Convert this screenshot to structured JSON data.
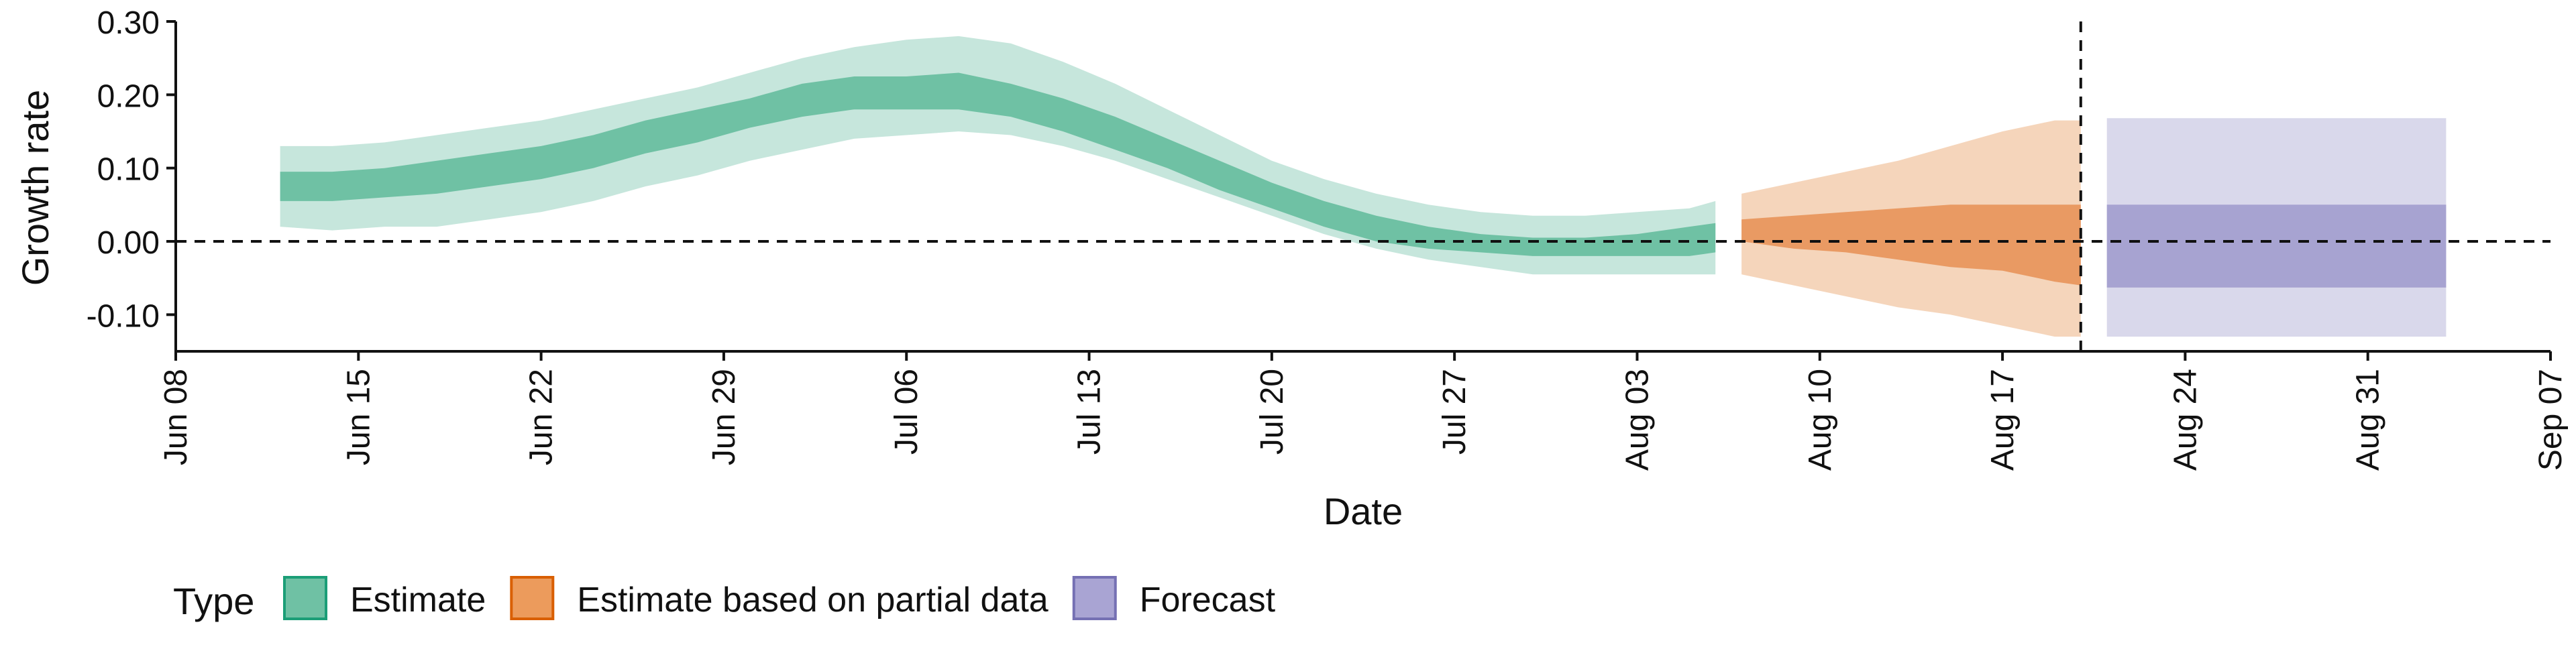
{
  "chart_data": {
    "type": "area",
    "xlabel": "Date",
    "ylabel": "Growth rate",
    "xlim": [
      "2020-06-08",
      "2020-09-07"
    ],
    "ylim": [
      -0.15,
      0.3
    ],
    "x_ticks": [
      "2020-06-08",
      "2020-06-15",
      "2020-06-22",
      "2020-06-29",
      "2020-07-06",
      "2020-07-13",
      "2020-07-20",
      "2020-07-27",
      "2020-08-03",
      "2020-08-10",
      "2020-08-17",
      "2020-08-24",
      "2020-08-31",
      "2020-09-07"
    ],
    "x_tick_labels": [
      "Jun 08",
      "Jun 15",
      "Jun 22",
      "Jun 29",
      "Jul 06",
      "Jul 13",
      "Jul 20",
      "Jul 27",
      "Aug 03",
      "Aug 10",
      "Aug 17",
      "Aug 24",
      "Aug 31",
      "Sep 07"
    ],
    "y_ticks": [
      -0.1,
      0.0,
      0.1,
      0.2,
      0.3
    ],
    "y_tick_labels": [
      "-0.10",
      "0.00",
      "0.10",
      "0.20",
      "0.30"
    ],
    "reference_lines": {
      "horizontal_y": 0.0,
      "vertical_date": "2020-08-20"
    },
    "legend": {
      "title": "Type",
      "position": "bottom-left"
    },
    "colors": {
      "Estimate": {
        "outer": "#c6e6dc",
        "inner": "#6fc1a4",
        "key_fill": "#6fc1a4",
        "key_border": "#1b9e77"
      },
      "Estimate based on partial data": {
        "outer": "#f5d5bb",
        "inner": "#e99a63",
        "key_fill": "#ec9b5c",
        "key_border": "#d95f02"
      },
      "Forecast": {
        "outer": "#d9d8eb",
        "inner": "#a7a3d1",
        "key_fill": "#a9a4d3",
        "key_border": "#7570b3"
      }
    },
    "series": [
      {
        "name": "Estimate",
        "x": [
          "2020-06-12",
          "2020-06-14",
          "2020-06-16",
          "2020-06-18",
          "2020-06-20",
          "2020-06-22",
          "2020-06-24",
          "2020-06-26",
          "2020-06-28",
          "2020-06-30",
          "2020-07-02",
          "2020-07-04",
          "2020-07-06",
          "2020-07-08",
          "2020-07-10",
          "2020-07-12",
          "2020-07-14",
          "2020-07-16",
          "2020-07-18",
          "2020-07-20",
          "2020-07-22",
          "2020-07-24",
          "2020-07-26",
          "2020-07-28",
          "2020-07-30",
          "2020-08-01",
          "2020-08-03",
          "2020-08-05",
          "2020-08-06"
        ],
        "outer_lower": [
          0.02,
          0.015,
          0.02,
          0.02,
          0.03,
          0.04,
          0.055,
          0.075,
          0.09,
          0.11,
          0.125,
          0.14,
          0.145,
          0.15,
          0.145,
          0.13,
          0.11,
          0.085,
          0.06,
          0.035,
          0.01,
          -0.01,
          -0.025,
          -0.035,
          -0.045,
          -0.045,
          -0.045,
          -0.045,
          -0.045
        ],
        "inner_lower": [
          0.055,
          0.055,
          0.06,
          0.065,
          0.075,
          0.085,
          0.1,
          0.12,
          0.135,
          0.155,
          0.17,
          0.18,
          0.18,
          0.18,
          0.17,
          0.15,
          0.125,
          0.1,
          0.07,
          0.045,
          0.02,
          0.0,
          -0.01,
          -0.015,
          -0.02,
          -0.02,
          -0.02,
          -0.02,
          -0.015
        ],
        "inner_upper": [
          0.095,
          0.095,
          0.1,
          0.11,
          0.12,
          0.13,
          0.145,
          0.165,
          0.18,
          0.195,
          0.215,
          0.225,
          0.225,
          0.23,
          0.215,
          0.195,
          0.17,
          0.14,
          0.11,
          0.08,
          0.055,
          0.035,
          0.02,
          0.01,
          0.005,
          0.005,
          0.01,
          0.02,
          0.025
        ],
        "outer_upper": [
          0.13,
          0.13,
          0.135,
          0.145,
          0.155,
          0.165,
          0.18,
          0.195,
          0.21,
          0.23,
          0.25,
          0.265,
          0.275,
          0.28,
          0.27,
          0.245,
          0.215,
          0.18,
          0.145,
          0.11,
          0.085,
          0.065,
          0.05,
          0.04,
          0.035,
          0.035,
          0.04,
          0.045,
          0.055
        ]
      },
      {
        "name": "Estimate based on partial data",
        "x": [
          "2020-08-07",
          "2020-08-09",
          "2020-08-11",
          "2020-08-13",
          "2020-08-15",
          "2020-08-17",
          "2020-08-19",
          "2020-08-20"
        ],
        "outer_lower": [
          -0.045,
          -0.06,
          -0.075,
          -0.09,
          -0.1,
          -0.115,
          -0.13,
          -0.13
        ],
        "inner_lower": [
          0.0,
          -0.01,
          -0.015,
          -0.025,
          -0.035,
          -0.04,
          -0.055,
          -0.06
        ],
        "inner_upper": [
          0.03,
          0.035,
          0.04,
          0.045,
          0.05,
          0.05,
          0.05,
          0.05
        ],
        "outer_upper": [
          0.065,
          0.08,
          0.095,
          0.11,
          0.13,
          0.15,
          0.165,
          0.165
        ]
      },
      {
        "name": "Forecast",
        "x": [
          "2020-08-21",
          "2020-09-03"
        ],
        "outer_lower": [
          -0.13,
          -0.13
        ],
        "inner_lower": [
          -0.063,
          -0.063
        ],
        "inner_upper": [
          0.05,
          0.05
        ],
        "outer_upper": [
          0.168,
          0.168
        ]
      }
    ]
  }
}
